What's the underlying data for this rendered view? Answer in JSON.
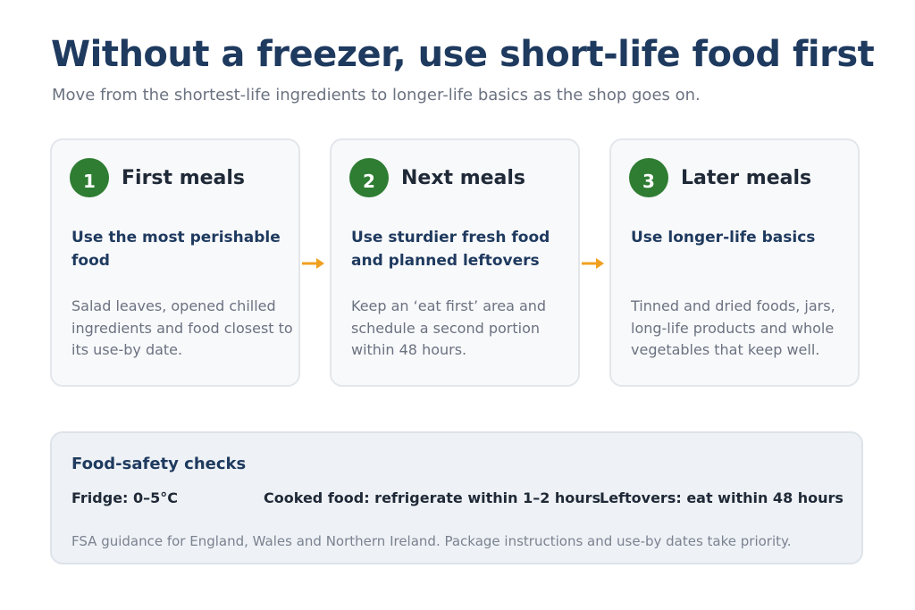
{
  "header": {
    "title": "Without a freezer, use short-life food first",
    "subtitle": "Move from the shortest-life ingredients to longer-life basics as the shop goes on."
  },
  "steps": [
    {
      "number": "1",
      "heading": "First meals",
      "summary": "Use the most perishable food",
      "detail": "Salad leaves, opened chilled ingredients and food closest to its use-by date."
    },
    {
      "number": "2",
      "heading": "Next meals",
      "summary": "Use sturdier fresh food and planned leftovers",
      "detail": "Keep an ‘eat first’ area and schedule a second portion within 48 hours."
    },
    {
      "number": "3",
      "heading": "Later meals",
      "summary": "Use longer-life basics",
      "detail": "Tinned and dried foods, jars, long-life products and whole vegetables that keep well."
    }
  ],
  "safety": {
    "title": "Food-safety checks",
    "items": [
      "Fridge: 0–5°C",
      "Cooked food: refrigerate within 1–2 hours",
      "Leftovers: eat within 48 hours"
    ],
    "note": "FSA guidance for England, Wales and Northern Ireland. Package instructions and use-by dates take priority."
  }
}
